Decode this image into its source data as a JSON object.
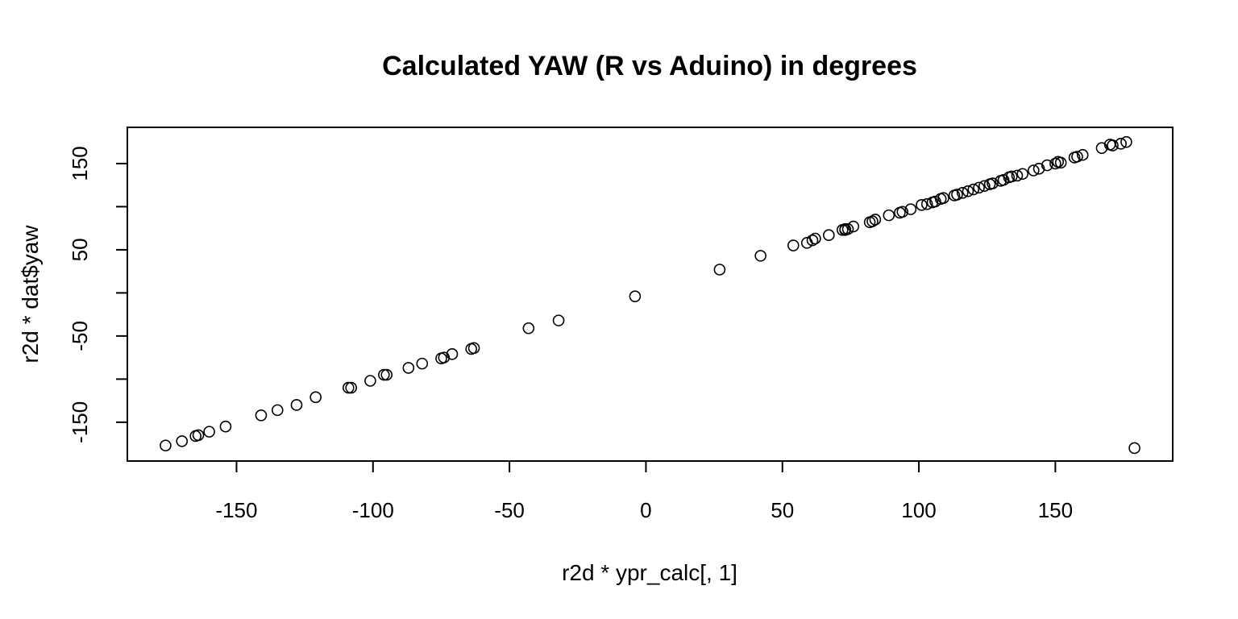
{
  "chart_data": {
    "type": "scatter",
    "title": "Calculated YAW (R vs Aduino) in degrees",
    "xlabel": "r2d * ypr_calc[, 1]",
    "ylabel": "r2d * dat$yaw",
    "xlim": [
      -190,
      193
    ],
    "ylim": [
      -195,
      192
    ],
    "x_ticks": [
      -150,
      -100,
      -50,
      0,
      50,
      100,
      150
    ],
    "x_tick_labels": [
      "-150",
      "-100",
      "-50",
      "0",
      "50",
      "100",
      "150"
    ],
    "y_ticks": [
      -150,
      -100,
      -50,
      0,
      50,
      100,
      150
    ],
    "y_tick_labels": [
      "-150",
      "",
      "-50",
      "",
      "50",
      "",
      "150"
    ],
    "grid": false,
    "legend": "none",
    "points": [
      [
        -176,
        -177
      ],
      [
        -170,
        -172
      ],
      [
        -165,
        -166
      ],
      [
        -164,
        -165
      ],
      [
        -160,
        -161
      ],
      [
        -154,
        -155
      ],
      [
        -141,
        -142
      ],
      [
        -135,
        -136
      ],
      [
        -128,
        -130
      ],
      [
        -121,
        -121
      ],
      [
        -109,
        -110
      ],
      [
        -108,
        -110
      ],
      [
        -101,
        -102
      ],
      [
        -96,
        -95
      ],
      [
        -95,
        -95
      ],
      [
        -87,
        -87
      ],
      [
        -82,
        -82
      ],
      [
        -75,
        -76
      ],
      [
        -74,
        -75
      ],
      [
        -71,
        -71
      ],
      [
        -64,
        -65
      ],
      [
        -63,
        -64
      ],
      [
        -43,
        -41
      ],
      [
        -32,
        -32
      ],
      [
        -4,
        -4
      ],
      [
        27,
        27
      ],
      [
        42,
        43
      ],
      [
        54,
        55
      ],
      [
        59,
        58
      ],
      [
        61,
        61
      ],
      [
        62,
        63
      ],
      [
        67,
        67
      ],
      [
        72,
        73
      ],
      [
        73,
        74
      ],
      [
        73,
        73
      ],
      [
        74,
        74
      ],
      [
        76,
        77
      ],
      [
        82,
        82
      ],
      [
        83,
        83
      ],
      [
        84,
        85
      ],
      [
        89,
        90
      ],
      [
        93,
        93
      ],
      [
        94,
        94
      ],
      [
        97,
        97
      ],
      [
        101,
        102
      ],
      [
        103,
        103
      ],
      [
        105,
        105
      ],
      [
        106,
        106
      ],
      [
        108,
        109
      ],
      [
        109,
        110
      ],
      [
        113,
        113
      ],
      [
        114,
        114
      ],
      [
        116,
        116
      ],
      [
        118,
        118
      ],
      [
        120,
        120
      ],
      [
        122,
        122
      ],
      [
        124,
        124
      ],
      [
        126,
        126
      ],
      [
        127,
        127
      ],
      [
        130,
        130
      ],
      [
        131,
        131
      ],
      [
        133,
        134
      ],
      [
        134,
        135
      ],
      [
        136,
        136
      ],
      [
        138,
        138
      ],
      [
        142,
        142
      ],
      [
        144,
        144
      ],
      [
        147,
        148
      ],
      [
        150,
        150
      ],
      [
        151,
        152
      ],
      [
        152,
        151
      ],
      [
        157,
        157
      ],
      [
        158,
        158
      ],
      [
        160,
        160
      ],
      [
        167,
        168
      ],
      [
        170,
        172
      ],
      [
        171,
        171
      ],
      [
        174,
        173
      ],
      [
        176,
        175
      ],
      [
        179,
        -180
      ]
    ]
  }
}
